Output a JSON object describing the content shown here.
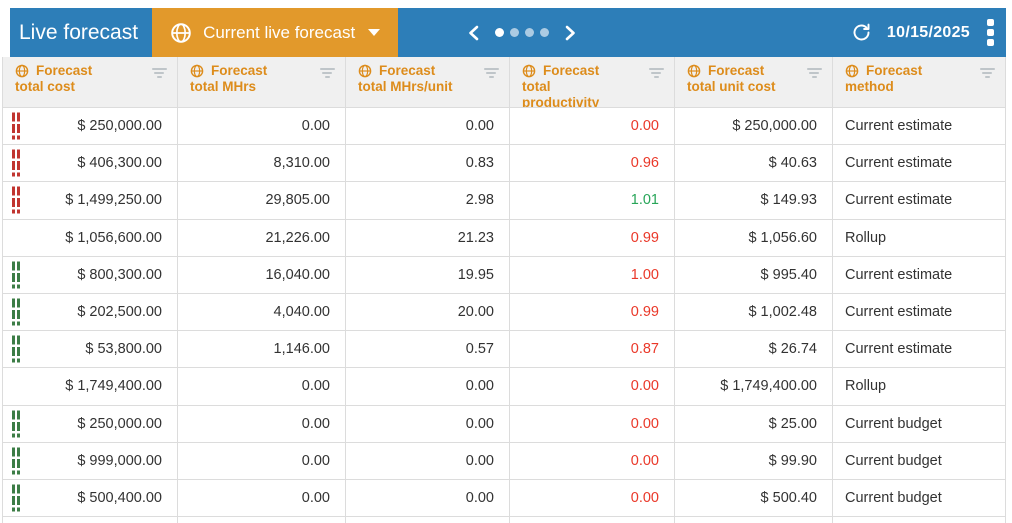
{
  "toolbar": {
    "title": "Live forecast",
    "selector": {
      "label": "Current live forecast",
      "icon": "globe-icon"
    },
    "pagination": {
      "dot_count": 4,
      "active_index": 0
    },
    "date": "10/15/2025"
  },
  "table": {
    "columns": [
      {
        "id": "total_cost",
        "lines": [
          "Forecast",
          "total cost"
        ],
        "align": "right"
      },
      {
        "id": "total_mhrs",
        "lines": [
          "Forecast",
          "total MHrs"
        ],
        "align": "right"
      },
      {
        "id": "mhrs_per_unit",
        "lines": [
          "Forecast",
          "total MHrs/unit"
        ],
        "align": "right"
      },
      {
        "id": "productivity",
        "lines": [
          "Forecast",
          "total",
          "productivity"
        ],
        "align": "right"
      },
      {
        "id": "unit_cost",
        "lines": [
          "Forecast",
          "total unit cost"
        ],
        "align": "right"
      },
      {
        "id": "method",
        "lines": [
          "Forecast",
          "method"
        ],
        "align": "left"
      }
    ],
    "rows": [
      {
        "indicator": "red",
        "cells": [
          "$ 250,000.00",
          "0.00",
          "0.00",
          "0.00",
          "$ 250,000.00",
          "Current estimate"
        ],
        "productivity_color": "red"
      },
      {
        "indicator": "red",
        "cells": [
          "$ 406,300.00",
          "8,310.00",
          "0.83",
          "0.96",
          "$ 40.63",
          "Current estimate"
        ],
        "productivity_color": "red"
      },
      {
        "indicator": "red",
        "cells": [
          "$ 1,499,250.00",
          "29,805.00",
          "2.98",
          "1.01",
          "$ 149.93",
          "Current estimate"
        ],
        "productivity_color": "green"
      },
      {
        "indicator": "none",
        "cells": [
          "$ 1,056,600.00",
          "21,226.00",
          "21.23",
          "0.99",
          "$ 1,056.60",
          "Rollup"
        ],
        "productivity_color": "red"
      },
      {
        "indicator": "green",
        "cells": [
          "$ 800,300.00",
          "16,040.00",
          "19.95",
          "1.00",
          "$ 995.40",
          "Current estimate"
        ],
        "productivity_color": "red"
      },
      {
        "indicator": "green",
        "cells": [
          "$ 202,500.00",
          "4,040.00",
          "20.00",
          "0.99",
          "$ 1,002.48",
          "Current estimate"
        ],
        "productivity_color": "red"
      },
      {
        "indicator": "green",
        "cells": [
          "$ 53,800.00",
          "1,146.00",
          "0.57",
          "0.87",
          "$ 26.74",
          "Current estimate"
        ],
        "productivity_color": "red"
      },
      {
        "indicator": "none",
        "cells": [
          "$ 1,749,400.00",
          "0.00",
          "0.00",
          "0.00",
          "$ 1,749,400.00",
          "Rollup"
        ],
        "productivity_color": "red"
      },
      {
        "indicator": "green",
        "cells": [
          "$ 250,000.00",
          "0.00",
          "0.00",
          "0.00",
          "$ 25.00",
          "Current budget"
        ],
        "productivity_color": "red"
      },
      {
        "indicator": "green",
        "cells": [
          "$ 999,000.00",
          "0.00",
          "0.00",
          "0.00",
          "$ 99.90",
          "Current budget"
        ],
        "productivity_color": "red"
      },
      {
        "indicator": "green",
        "cells": [
          "$ 500,400.00",
          "0.00",
          "0.00",
          "0.00",
          "$ 500.40",
          "Current budget"
        ],
        "productivity_color": "red"
      }
    ]
  },
  "colors": {
    "toolbar_blue": "#2d7eb8",
    "selector_orange": "#e2992b",
    "header_text_orange": "#dd8c1b",
    "value_red": "#ea3829",
    "value_green": "#27a558",
    "indicator_red": "#c13530",
    "indicator_green": "#3c7d46"
  }
}
